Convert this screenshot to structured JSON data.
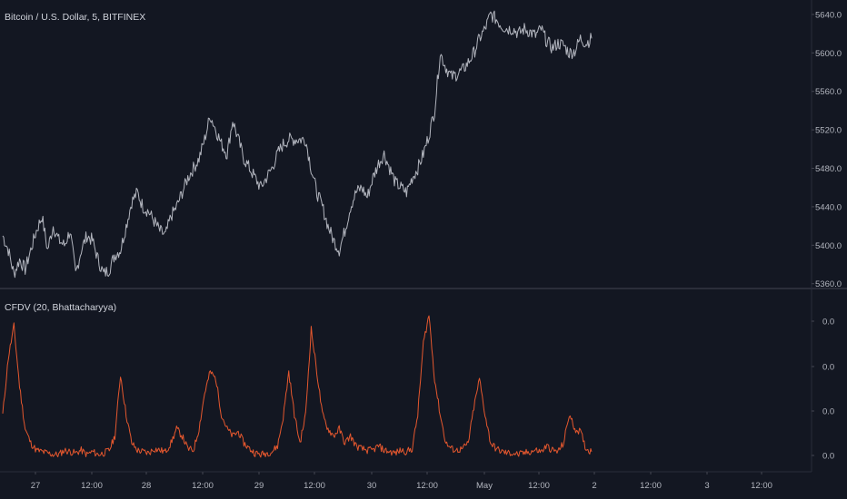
{
  "header": {
    "symbol_title": "Bitcoin / U.S. Dollar, 5, BITFINEX",
    "indicator_title": "CFDV (20, Bhattacharyya)"
  },
  "colors": {
    "background": "#131722",
    "price_line": "#b2b5be",
    "indicator_line": "#e4572e",
    "separator": "#e0e3eb",
    "axis_text": "#b2b5be"
  },
  "chart_data": [
    {
      "type": "line",
      "title": "Bitcoin / U.S. Dollar, 5, BITFINEX",
      "xlabel": "",
      "ylabel": "",
      "x_ticks": [
        "27",
        "12:00",
        "28",
        "12:00",
        "29",
        "12:00",
        "30",
        "12:00",
        "May",
        "12:00",
        "2",
        "12:00",
        "3",
        "12:00"
      ],
      "y_ticks": [
        "5360.0",
        "5400.0",
        "5440.0",
        "5480.0",
        "5520.0",
        "5560.0",
        "5600.0",
        "5640.0"
      ],
      "ylim": [
        5355,
        5655
      ],
      "grid": false,
      "series": [
        {
          "values": [
            5410,
            5395,
            5370,
            5385,
            5375,
            5395,
            5415,
            5430,
            5395,
            5420,
            5405,
            5400,
            5415,
            5370,
            5395,
            5410,
            5405,
            5385,
            5370,
            5375,
            5390,
            5395,
            5420,
            5445,
            5455,
            5440,
            5435,
            5425,
            5415,
            5410,
            5430,
            5440,
            5455,
            5470,
            5480,
            5490,
            5510,
            5535,
            5520,
            5505,
            5495,
            5530,
            5510,
            5490,
            5480,
            5470,
            5460,
            5470,
            5480,
            5495,
            5505,
            5510,
            5510,
            5510,
            5510,
            5480,
            5455,
            5440,
            5420,
            5405,
            5395,
            5415,
            5440,
            5455,
            5460,
            5450,
            5470,
            5485,
            5495,
            5480,
            5465,
            5460,
            5455,
            5470,
            5480,
            5495,
            5515,
            5540,
            5600,
            5585,
            5575,
            5578,
            5582,
            5590,
            5600,
            5615,
            5625,
            5640,
            5635,
            5628,
            5625,
            5625,
            5620,
            5625,
            5622,
            5618,
            5625,
            5612,
            5605,
            5610,
            5608,
            5600,
            5602,
            5615,
            5610,
            5615
          ]
        }
      ]
    },
    {
      "type": "line",
      "title": "CFDV (20, Bhattacharyya)",
      "xlabel": "",
      "ylabel": "",
      "y_ticks": [
        "0.0",
        "0.0",
        "0.0",
        "0.0"
      ],
      "ylim": [
        -0.05,
        1.05
      ],
      "grid": false,
      "series": [
        {
          "values": [
            0.3,
            0.7,
            0.92,
            0.5,
            0.2,
            0.1,
            0.05,
            0.04,
            0.03,
            0.02,
            0.02,
            0.05,
            0.04,
            0.03,
            0.05,
            0.02,
            0.04,
            0.02,
            0.03,
            0.05,
            0.15,
            0.58,
            0.3,
            0.1,
            0.05,
            0.04,
            0.03,
            0.06,
            0.05,
            0.04,
            0.1,
            0.2,
            0.15,
            0.06,
            0.05,
            0.2,
            0.45,
            0.6,
            0.55,
            0.3,
            0.2,
            0.15,
            0.18,
            0.1,
            0.06,
            0.03,
            0.02,
            0.03,
            0.04,
            0.08,
            0.28,
            0.6,
            0.3,
            0.1,
            0.3,
            0.9,
            0.6,
            0.3,
            0.2,
            0.15,
            0.2,
            0.1,
            0.15,
            0.08,
            0.06,
            0.05,
            0.05,
            0.08,
            0.05,
            0.04,
            0.03,
            0.05,
            0.04,
            0.06,
            0.3,
            0.8,
            1.0,
            0.55,
            0.3,
            0.1,
            0.06,
            0.05,
            0.06,
            0.1,
            0.35,
            0.55,
            0.3,
            0.1,
            0.06,
            0.04,
            0.03,
            0.03,
            0.02,
            0.03,
            0.04,
            0.05,
            0.04,
            0.08,
            0.05,
            0.04,
            0.1,
            0.3,
            0.2,
            0.18,
            0.06,
            0.04
          ]
        }
      ]
    }
  ]
}
